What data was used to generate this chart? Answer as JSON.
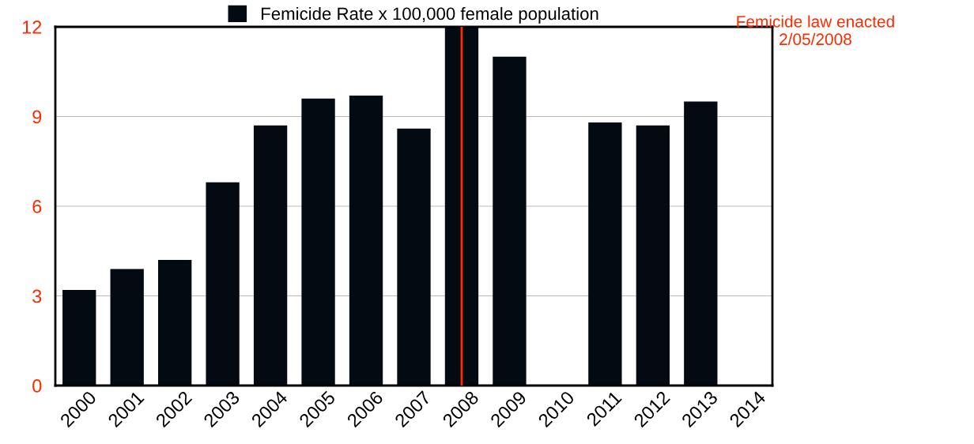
{
  "chart_data": {
    "type": "bar",
    "categories": [
      "2000",
      "2001",
      "2002",
      "2003",
      "2004",
      "2005",
      "2006",
      "2007",
      "2008",
      "2009",
      "2010",
      "2011",
      "2012",
      "2013",
      "2014"
    ],
    "series": [
      {
        "name": "Femicide Rate x 100,000 female population",
        "color": "#030a12",
        "values": [
          3.2,
          3.9,
          4.2,
          6.8,
          8.7,
          9.6,
          9.7,
          8.6,
          12.0,
          11.0,
          null,
          8.8,
          8.7,
          9.5,
          null
        ]
      }
    ],
    "ylim": [
      0,
      12
    ],
    "yticks": [
      0,
      3,
      6,
      9,
      12
    ],
    "grid": "y",
    "legend": "top",
    "ref_lines": [
      {
        "axis": "x",
        "value": "2008",
        "label": "Femicide law enacted\n2/05/2008",
        "color": "#ff2a00"
      }
    ]
  }
}
